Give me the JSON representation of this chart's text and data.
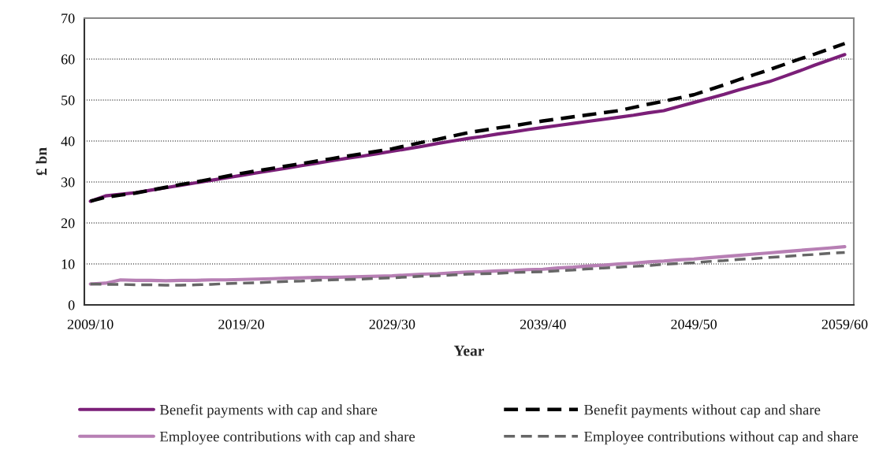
{
  "chart_data": {
    "type": "line",
    "xlabel": "Year",
    "ylabel": "£ bn",
    "categories": [
      "2009/10",
      null,
      null,
      null,
      null,
      null,
      null,
      null,
      null,
      null,
      "2019/20",
      null,
      null,
      null,
      null,
      null,
      null,
      null,
      null,
      null,
      "2029/30",
      null,
      null,
      null,
      null,
      null,
      null,
      null,
      null,
      null,
      "2039/40",
      null,
      null,
      null,
      null,
      null,
      null,
      null,
      null,
      null,
      "2049/50",
      null,
      null,
      null,
      null,
      null,
      null,
      null,
      null,
      null,
      "2059/60"
    ],
    "ylim": [
      0,
      70
    ],
    "yticks": [
      0,
      10,
      20,
      30,
      40,
      50,
      60,
      70
    ],
    "grid": "y",
    "legend": "bottom",
    "marker": "none",
    "series": [
      {
        "name": "Benefit payments with cap and share",
        "color": "#7b1f78",
        "line_style": "solid",
        "values": [
          25.3,
          26.6,
          27.0,
          27.4,
          28.0,
          28.6,
          29.2,
          29.8,
          30.4,
          31.0,
          31.6,
          32.2,
          32.8,
          33.4,
          34.0,
          34.6,
          35.2,
          35.8,
          36.3,
          36.9,
          37.5,
          38.1,
          38.7,
          39.4,
          40.0,
          40.6,
          41.1,
          41.7,
          42.2,
          42.8,
          43.3,
          43.8,
          44.3,
          44.8,
          45.3,
          45.8,
          46.3,
          46.9,
          47.4,
          48.4,
          49.4,
          50.4,
          51.4,
          52.5,
          53.5,
          54.5,
          55.8,
          57.1,
          58.5,
          59.8,
          61.1
        ]
      },
      {
        "name": "Benefit payments without cap and share",
        "color": "#000000",
        "line_style": "dashed",
        "values": [
          25.3,
          26.3,
          26.8,
          27.3,
          28.0,
          28.7,
          29.4,
          30.0,
          30.7,
          31.4,
          32.1,
          32.7,
          33.3,
          33.9,
          34.5,
          35.1,
          35.7,
          36.3,
          36.9,
          37.5,
          38.1,
          38.9,
          39.7,
          40.4,
          41.2,
          42.0,
          42.6,
          43.2,
          43.7,
          44.3,
          44.9,
          45.4,
          45.9,
          46.4,
          46.9,
          47.4,
          48.2,
          49.0,
          49.7,
          50.5,
          51.3,
          52.5,
          53.7,
          55.0,
          56.2,
          57.4,
          58.7,
          60.0,
          61.2,
          62.5,
          63.8
        ]
      },
      {
        "name": "Employee contributions with cap and share",
        "color": "#b77fb4",
        "line_style": "solid",
        "values": [
          5.1,
          5.3,
          6.1,
          6.0,
          6.0,
          5.9,
          6.0,
          6.0,
          6.1,
          6.1,
          6.2,
          6.3,
          6.4,
          6.5,
          6.6,
          6.7,
          6.7,
          6.8,
          6.9,
          7.0,
          7.1,
          7.3,
          7.5,
          7.6,
          7.8,
          8.0,
          8.1,
          8.3,
          8.4,
          8.6,
          8.7,
          9.0,
          9.2,
          9.5,
          9.7,
          10.0,
          10.2,
          10.5,
          10.7,
          11.0,
          11.2,
          11.5,
          11.8,
          12.1,
          12.4,
          12.7,
          13.0,
          13.3,
          13.6,
          13.9,
          14.2
        ]
      },
      {
        "name": "Employee contributions without cap and share",
        "color": "#666666",
        "line_style": "dashed",
        "values": [
          5.1,
          5.0,
          5.0,
          4.9,
          4.9,
          4.8,
          4.8,
          4.9,
          5.0,
          5.2,
          5.3,
          5.4,
          5.6,
          5.7,
          5.8,
          6.0,
          6.1,
          6.2,
          6.3,
          6.5,
          6.6,
          6.8,
          7.0,
          7.1,
          7.3,
          7.5,
          7.6,
          7.7,
          7.9,
          8.0,
          8.1,
          8.3,
          8.5,
          8.8,
          9.0,
          9.2,
          9.4,
          9.6,
          9.9,
          10.1,
          10.3,
          10.6,
          10.8,
          11.1,
          11.3,
          11.6,
          11.8,
          12.1,
          12.3,
          12.6,
          12.8
        ]
      }
    ]
  }
}
